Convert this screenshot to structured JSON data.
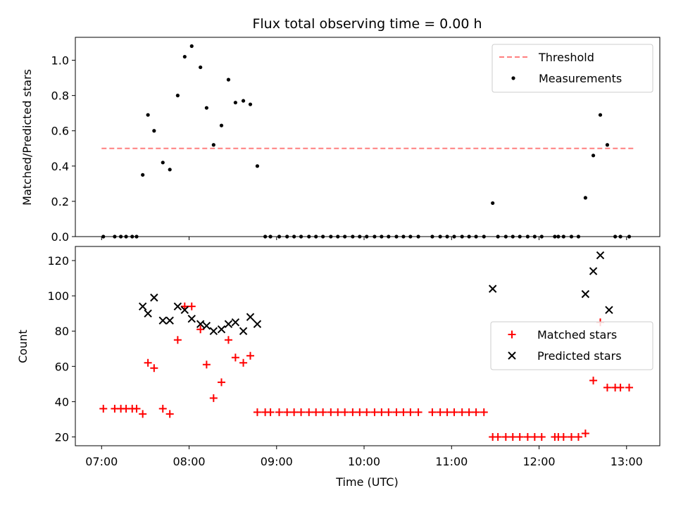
{
  "chart_data": [
    {
      "type": "scatter",
      "title": "Flux total observing time = 0.00 h",
      "xlabel": "",
      "ylabel": "Matched/Predicted stars",
      "xlim": [
        6.7,
        13.38
      ],
      "ylim": [
        0,
        1.13
      ],
      "yticks": [
        0.0,
        0.2,
        0.4,
        0.6,
        0.8,
        1.0
      ],
      "ytick_labels": [
        "0.0",
        "0.2",
        "0.4",
        "0.6",
        "0.8",
        "1.0"
      ],
      "legend_position": "upper right",
      "series": [
        {
          "name": "Threshold",
          "kind": "dashed-line",
          "color": "#ff7f7f",
          "x": [
            7.0,
            13.08
          ],
          "y": [
            0.5,
            0.5
          ]
        },
        {
          "name": "Measurements",
          "kind": "points",
          "color": "#000000",
          "x": [
            7.02,
            7.15,
            7.22,
            7.28,
            7.35,
            7.4,
            7.47,
            7.53,
            7.6,
            7.7,
            7.78,
            7.87,
            7.95,
            8.03,
            8.13,
            8.2,
            8.28,
            8.37,
            8.45,
            8.53,
            8.62,
            8.7,
            8.78,
            8.87,
            8.93,
            9.03,
            9.12,
            9.2,
            9.28,
            9.37,
            9.45,
            9.53,
            9.62,
            9.7,
            9.78,
            9.87,
            9.95,
            10.03,
            10.12,
            10.2,
            10.28,
            10.37,
            10.45,
            10.53,
            10.62,
            10.78,
            10.87,
            10.95,
            11.03,
            11.12,
            11.2,
            11.28,
            11.37,
            11.47,
            11.53,
            11.62,
            11.7,
            11.78,
            11.87,
            11.95,
            12.03,
            12.18,
            12.22,
            12.28,
            12.37,
            12.45,
            12.53,
            12.62,
            12.7,
            12.78,
            12.87,
            12.93,
            13.03
          ],
          "y": [
            0,
            0,
            0,
            0,
            0,
            0,
            0.35,
            0.69,
            0.6,
            0.42,
            0.38,
            0.8,
            1.02,
            1.08,
            0.96,
            0.73,
            0.52,
            0.63,
            0.89,
            0.76,
            0.77,
            0.75,
            0.4,
            0,
            0,
            0,
            0,
            0,
            0,
            0,
            0,
            0,
            0,
            0,
            0,
            0,
            0,
            0,
            0,
            0,
            0,
            0,
            0,
            0,
            0,
            0,
            0,
            0,
            0,
            0,
            0,
            0,
            0,
            0.19,
            0,
            0,
            0,
            0,
            0,
            0,
            0,
            0,
            0,
            0,
            0,
            0,
            0.22,
            0.46,
            0.69,
            0.52,
            0,
            0,
            0
          ]
        }
      ]
    },
    {
      "type": "scatter",
      "title": "",
      "xlabel": "Time (UTC)",
      "ylabel": "Count",
      "xlim": [
        6.7,
        13.38
      ],
      "ylim": [
        15,
        128
      ],
      "xticks": [
        7,
        8,
        9,
        10,
        11,
        12,
        13
      ],
      "xtick_labels": [
        "07:00",
        "08:00",
        "09:00",
        "10:00",
        "11:00",
        "12:00",
        "13:00"
      ],
      "yticks": [
        20,
        40,
        60,
        80,
        100,
        120
      ],
      "ytick_labels": [
        "20",
        "40",
        "60",
        "80",
        "100",
        "120"
      ],
      "legend_position": "center right",
      "series": [
        {
          "name": "Matched stars",
          "kind": "plus",
          "color": "#ff0000",
          "x": [
            7.02,
            7.15,
            7.22,
            7.28,
            7.35,
            7.4,
            7.47,
            7.53,
            7.6,
            7.7,
            7.78,
            7.87,
            7.95,
            8.03,
            8.13,
            8.2,
            8.28,
            8.37,
            8.45,
            8.53,
            8.62,
            8.7,
            8.78,
            8.87,
            8.93,
            9.03,
            9.12,
            9.2,
            9.28,
            9.37,
            9.45,
            9.53,
            9.62,
            9.7,
            9.78,
            9.87,
            9.95,
            10.03,
            10.12,
            10.2,
            10.28,
            10.37,
            10.45,
            10.53,
            10.62,
            10.78,
            10.87,
            10.95,
            11.03,
            11.12,
            11.2,
            11.28,
            11.37,
            11.47,
            11.53,
            11.62,
            11.7,
            11.78,
            11.87,
            11.95,
            12.03,
            12.18,
            12.22,
            12.28,
            12.37,
            12.45,
            12.53,
            12.62,
            12.7,
            12.78,
            12.87,
            12.93,
            13.03
          ],
          "y": [
            36,
            36,
            36,
            36,
            36,
            36,
            33,
            62,
            59,
            36,
            33,
            75,
            94,
            94,
            81,
            61,
            42,
            51,
            75,
            65,
            62,
            66,
            34,
            34,
            34,
            34,
            34,
            34,
            34,
            34,
            34,
            34,
            34,
            34,
            34,
            34,
            34,
            34,
            34,
            34,
            34,
            34,
            34,
            34,
            34,
            34,
            34,
            34,
            34,
            34,
            34,
            34,
            34,
            20,
            20,
            20,
            20,
            20,
            20,
            20,
            20,
            20,
            20,
            20,
            20,
            20,
            22,
            52,
            85,
            48,
            48,
            48,
            48
          ]
        },
        {
          "name": "Predicted stars",
          "kind": "cross",
          "color": "#000000",
          "x": [
            7.47,
            7.53,
            7.6,
            7.7,
            7.78,
            7.87,
            7.95,
            8.03,
            8.13,
            8.2,
            8.28,
            8.37,
            8.45,
            8.53,
            8.62,
            8.7,
            8.78,
            11.47,
            12.53,
            12.62,
            12.7,
            12.8
          ],
          "y": [
            94,
            90,
            99,
            86,
            86,
            94,
            92,
            87,
            84,
            83,
            80,
            81,
            84,
            85,
            80,
            88,
            84,
            104,
            101,
            114,
            123,
            92
          ]
        }
      ]
    }
  ]
}
